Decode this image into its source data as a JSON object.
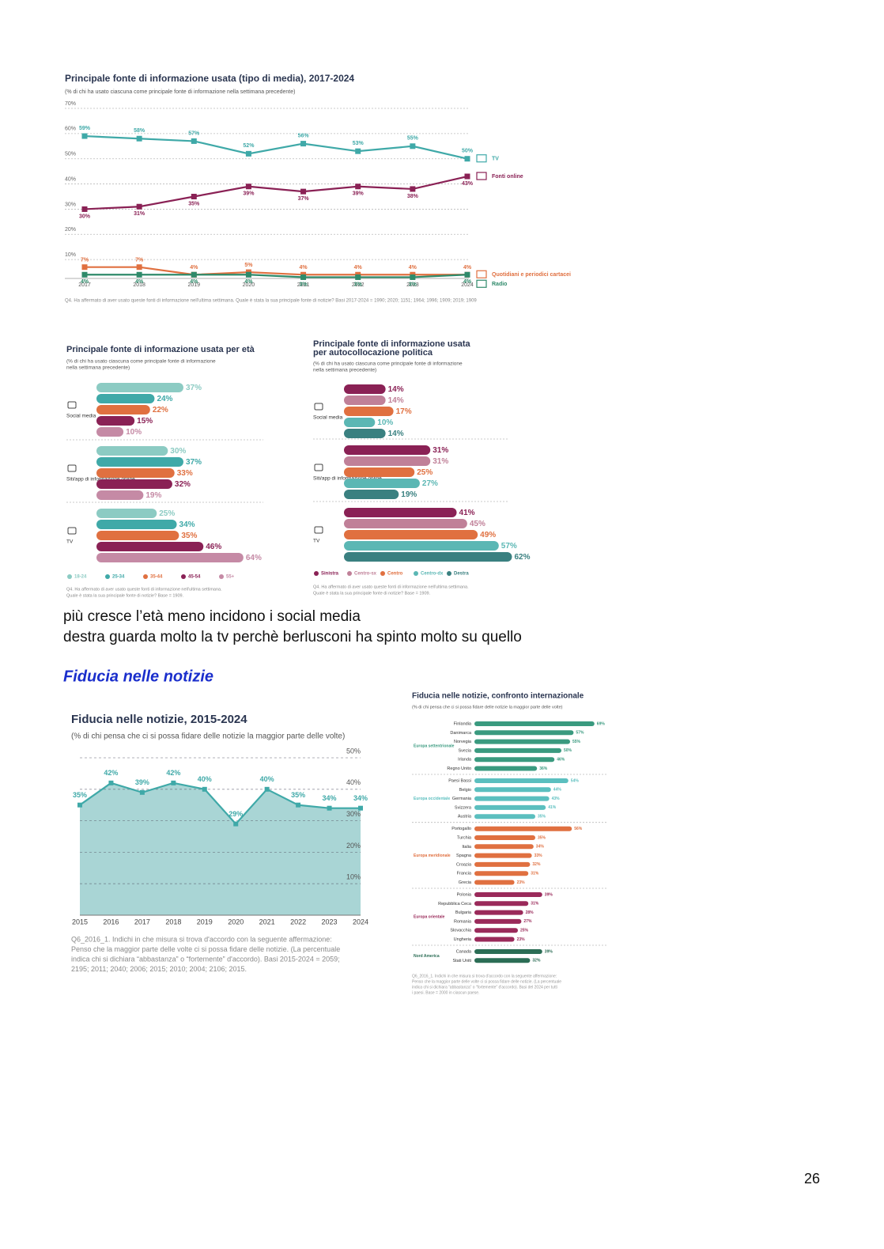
{
  "text": {
    "line1": "più cresce l’età meno incidono i social media",
    "line2": "destra guarda molto la tv perchè berlusconi ha spinto molto su quello",
    "heading": "Fiducia nelle notizie",
    "page_number": "26"
  },
  "charts": [
    {
      "type": "line",
      "title": "Principale fonte di informazione usata (tipo di media), 2017-2024",
      "subtitle": "(% di chi ha usato ciascuna come principale fonte di informazione nella settimana precedente)",
      "x": [
        2017,
        2018,
        2019,
        2020,
        2021,
        2022,
        2023,
        2024
      ],
      "xlim": [
        2017,
        2024
      ],
      "ylim": [
        0,
        70
      ],
      "yticks": [
        {
          "value": 10,
          "label": "10%"
        },
        {
          "value": 20,
          "label": "20%"
        },
        {
          "value": 30,
          "label": "30%"
        },
        {
          "value": 40,
          "label": "40%"
        },
        {
          "value": 50,
          "label": "50%"
        },
        {
          "value": 60,
          "label": "60%"
        },
        {
          "value": 70,
          "label": "70%"
        }
      ],
      "grid": true,
      "series": [
        {
          "name": "TV",
          "color": "#3fa9a8",
          "values": [
            59,
            58,
            57,
            52,
            56,
            53,
            55,
            50
          ],
          "value_labels": [
            "59%",
            "58%",
            "57%",
            "52%",
            "56%",
            "53%",
            "55%",
            "50%"
          ]
        },
        {
          "name": "Fonti online",
          "color": "#8a2155",
          "values": [
            30,
            31,
            35,
            39,
            37,
            39,
            38,
            43
          ],
          "value_labels": [
            "30%",
            "31%",
            "35%",
            "39%",
            "37%",
            "39%",
            "38%",
            "43%"
          ]
        },
        {
          "name": "Quotidiani e periodici cartacei",
          "color": "#e07040",
          "values": [
            7,
            7,
            4,
            5,
            4,
            4,
            4,
            4
          ],
          "value_labels": [
            "7%",
            "7%",
            "4%",
            "5%",
            "4%",
            "4%",
            "4%",
            "4%"
          ]
        },
        {
          "name": "Radio",
          "color": "#2f8a6a",
          "values": [
            4,
            4,
            4,
            4,
            3,
            3,
            3,
            4
          ],
          "value_labels": [
            "4%",
            "4%",
            "4%",
            "4%",
            "3%",
            "3%",
            "3%",
            "4%"
          ]
        }
      ],
      "note": "Q4. Ha affermato di aver usato queste fonti di informazione nell'ultima settimana. Quale è stata la sua principale fonte di notizie? Basi 2017-2024 = 1990; 2020; 1151; 1964; 1996; 1909; 2019; 1909"
    },
    {
      "type": "bar",
      "title": "Principale fonte di informazione usata per età",
      "subtitle": [
        "(% di chi ha usato ciascuna come principale fonte di informazione",
        "nella settimana precedente)"
      ],
      "categories": [
        "Social media",
        "Siti/app di informazione online",
        "TV"
      ],
      "series": [
        {
          "name": "18-24",
          "color": "#8ccbc3",
          "values": [
            37,
            30,
            25
          ],
          "value_labels": [
            "37%",
            "30%",
            "25%"
          ]
        },
        {
          "name": "25-34",
          "color": "#3fa9a8",
          "values": [
            24,
            37,
            34
          ],
          "value_labels": [
            "24%",
            "37%",
            "34%"
          ]
        },
        {
          "name": "35-44",
          "color": "#e07040",
          "values": [
            22,
            33,
            35
          ],
          "value_labels": [
            "22%",
            "33%",
            "35%"
          ]
        },
        {
          "name": "45-54",
          "color": "#8a2155",
          "values": [
            15,
            32,
            46
          ],
          "value_labels": [
            "15%",
            "32%",
            "46%"
          ]
        },
        {
          "name": "55+",
          "color": "#c58aa5",
          "values": [
            10,
            19,
            64
          ],
          "value_labels": [
            "10%",
            "19%",
            "64%"
          ]
        }
      ],
      "note": [
        "Q4. Ha affermato di aver usato queste fonti di informazione nell'ultima settimana.",
        "Quale è stata la sua principale fonte di notizie? Base = 1909."
      ]
    },
    {
      "type": "bar",
      "title": [
        "Principale fonte di informazione usata",
        "per autocollocazione politica"
      ],
      "subtitle": [
        "(% di chi ha usato ciascuna come principale fonte di informazione",
        "nella settimana precedente)"
      ],
      "categories": [
        "Social media",
        "Siti/app di informazione online",
        "TV"
      ],
      "series": [
        {
          "name": "Sinistra",
          "color": "#8a2155",
          "values": [
            14,
            31,
            41
          ],
          "value_labels": [
            "14%",
            "31%",
            "41%"
          ]
        },
        {
          "name": "Centro-sx",
          "color": "#c08098",
          "values": [
            14,
            31,
            45
          ],
          "value_labels": [
            "14%",
            "31%",
            "45%"
          ]
        },
        {
          "name": "Centro",
          "color": "#e07040",
          "values": [
            17,
            25,
            49
          ],
          "value_labels": [
            "17%",
            "25%",
            "49%"
          ]
        },
        {
          "name": "Centro-dx",
          "color": "#5bb7b4",
          "values": [
            10,
            27,
            57
          ],
          "value_labels": [
            "10%",
            "27%",
            "57%"
          ]
        },
        {
          "name": "Destra",
          "color": "#3a8080",
          "values": [
            14,
            19,
            62
          ],
          "value_labels": [
            "14%",
            "19%",
            "62%"
          ]
        }
      ],
      "note": [
        "Q4. Ha affermato di aver usato queste fonti di informazione nell'ultima settimana.",
        "Quale è stata la sua principale fonte di notizie? Base = 1909."
      ]
    },
    {
      "type": "area",
      "title": "Fiducia nelle notizie, 2015-2024",
      "subtitle": "(% di chi pensa che ci si possa fidare delle notizie la maggior parte delle volte)",
      "x": [
        2015,
        2016,
        2017,
        2018,
        2019,
        2020,
        2021,
        2022,
        2023,
        2024
      ],
      "xlim": [
        2015,
        2024
      ],
      "ylim": [
        0,
        50
      ],
      "yticks": [
        {
          "value": 10,
          "label": "10%"
        },
        {
          "value": 20,
          "label": "20%"
        },
        {
          "value": 30,
          "label": "30%"
        },
        {
          "value": 40,
          "label": "40%"
        },
        {
          "value": 50,
          "label": "50%"
        }
      ],
      "color": "#3fa9a8",
      "fill": "#a9d5d5",
      "values": [
        35,
        42,
        39,
        42,
        40,
        29,
        40,
        35,
        34,
        34
      ],
      "value_labels": [
        "35%",
        "42%",
        "39%",
        "42%",
        "40%",
        "29%",
        "40%",
        "35%",
        "34%",
        "34%"
      ],
      "note": [
        "Q6_2016_1. Indichi in che misura si trova d'accordo con la seguente affermazione:",
        "Penso che la maggior parte delle volte ci si possa fidare delle notizie. (La percentuale",
        "indica chi si dichiara “abbastanza” o “fortemente” d'accordo). Basi 2015-2024 = 2059;",
        "2195; 2011; 2040; 2006; 2015; 2010; 2004; 2106; 2015."
      ]
    },
    {
      "type": "grouped-hbar",
      "title": "Fiducia nelle notizie, confronto internazionale",
      "subtitle": "(% di chi pensa che ci si possa fidare delle notizie la maggior parte delle volte)",
      "groups": [
        {
          "name": "Europa settentrionale",
          "color": "#3a9a7f",
          "categories": [
            "Finlandia",
            "Danimarca",
            "Norvegia",
            "Svezia",
            "Irlanda",
            "Regno Unito"
          ],
          "values": [
            69,
            57,
            55,
            50,
            46,
            36
          ],
          "value_labels": [
            "69%",
            "57%",
            "55%",
            "50%",
            "46%",
            "36%"
          ]
        },
        {
          "name": "Europa occidentale",
          "color": "#5bbfbf",
          "categories": [
            "Paesi Bassi",
            "Belgio",
            "Germania",
            "Svizzera",
            "Austria"
          ],
          "values": [
            54,
            44,
            43,
            41,
            35
          ],
          "value_labels": [
            "54%",
            "44%",
            "43%",
            "41%",
            "35%"
          ]
        },
        {
          "name": "Europa meridionale",
          "color": "#e07040",
          "categories": [
            "Portogallo",
            "Turchia",
            "Italia",
            "Spagna",
            "Croazia",
            "Francia",
            "Grecia"
          ],
          "values": [
            56,
            35,
            34,
            33,
            32,
            31,
            23
          ],
          "value_labels": [
            "56%",
            "35%",
            "34%",
            "33%",
            "32%",
            "31%",
            "23%"
          ]
        },
        {
          "name": "Europa orientale",
          "color": "#9a2a5a",
          "categories": [
            "Polonia",
            "Repubblica Ceca",
            "Bulgaria",
            "Romania",
            "Slovacchia",
            "Ungheria"
          ],
          "values": [
            39,
            31,
            28,
            27,
            25,
            23
          ],
          "value_labels": [
            "39%",
            "31%",
            "28%",
            "27%",
            "25%",
            "23%"
          ]
        },
        {
          "name": "Nord America",
          "color": "#2b6d55",
          "categories": [
            "Canada",
            "Stati Uniti"
          ],
          "values": [
            39,
            32
          ],
          "value_labels": [
            "39%",
            "32%"
          ]
        }
      ],
      "note": [
        "Q6_2016_1. Indichi in che misura si trova d'accordo con la seguente affermazione:",
        "Penso che la maggior parte delle volte ci si possa fidare delle notizie. (La percentuale",
        "indica chi si dichiara “abbastanza” o “fortemente” d'accordo). Basi del 2024 per tutti",
        "i paesi. Base = 2000 in ciascun paese."
      ]
    }
  ]
}
